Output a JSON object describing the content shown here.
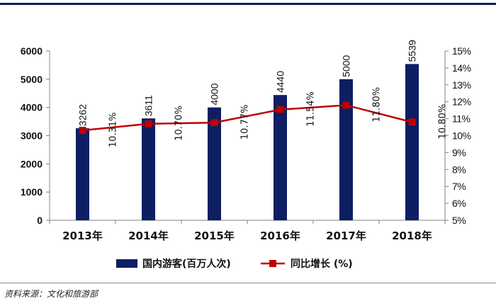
{
  "chart_data": {
    "type": "bar",
    "categories": [
      "2013年",
      "2014年",
      "2015年",
      "2016年",
      "2017年",
      "2018年"
    ],
    "series": [
      {
        "name": "国内游客(百万人次)",
        "type": "bar",
        "axis": "left",
        "values": [
          3262,
          3611,
          4000,
          4440,
          5000,
          5539
        ],
        "labels": [
          "3262",
          "3611",
          "4000",
          "4440",
          "5000",
          "5539"
        ],
        "color": "#0d1e63"
      },
      {
        "name": "同比增长 (%)",
        "type": "line",
        "axis": "right",
        "values": [
          10.31,
          10.7,
          10.77,
          11.54,
          11.8,
          10.8
        ],
        "labels": [
          "10.31%",
          "10.70%",
          "10.77%",
          "11.54%",
          "11.80%",
          "10.80%"
        ],
        "color": "#c00000"
      }
    ],
    "y_left": {
      "min": 0,
      "max": 6000,
      "ticks": [
        "0",
        "1000",
        "2000",
        "3000",
        "4000",
        "5000",
        "6000"
      ]
    },
    "y_right": {
      "min": 5,
      "max": 15,
      "ticks": [
        "5%",
        "6%",
        "7%",
        "8%",
        "9%",
        "10%",
        "11%",
        "12%",
        "13%",
        "14%",
        "15%"
      ]
    },
    "legend_position": "bottom",
    "title": ""
  },
  "source": "资料来源：文化和旅游部"
}
